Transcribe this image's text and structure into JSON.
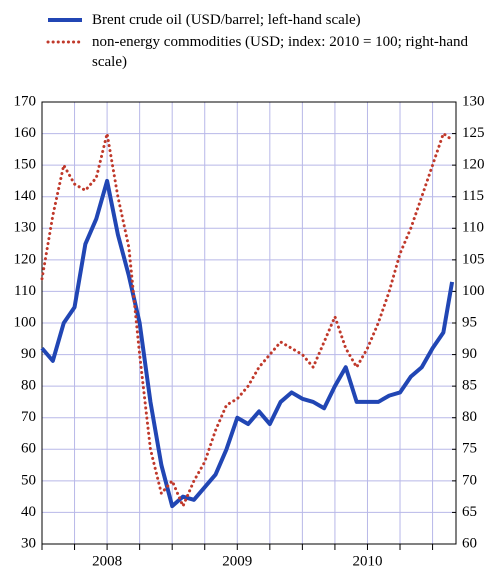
{
  "chart_data": {
    "type": "line",
    "x": [
      2008.0,
      2008.083,
      2008.167,
      2008.25,
      2008.333,
      2008.417,
      2008.5,
      2008.583,
      2008.667,
      2008.75,
      2008.833,
      2008.917,
      2009.0,
      2009.083,
      2009.167,
      2009.25,
      2009.333,
      2009.417,
      2009.5,
      2009.583,
      2009.667,
      2009.75,
      2009.833,
      2009.917,
      2010.0,
      2010.083,
      2010.167,
      2010.25,
      2010.333,
      2010.417,
      2010.5,
      2010.583,
      2010.667,
      2010.75,
      2010.833,
      2010.917,
      2011.0,
      2011.083,
      2011.15
    ],
    "series": [
      {
        "name": "Brent crude oil (USD/barrel; left-hand scale)",
        "color": "#2146b4",
        "values": [
          92,
          88,
          100,
          105,
          125,
          133,
          145,
          128,
          115,
          100,
          75,
          55,
          42,
          45,
          44,
          48,
          52,
          60,
          70,
          68,
          72,
          68,
          75,
          78,
          76,
          75,
          73,
          80,
          86,
          75,
          75,
          75,
          77,
          78,
          83,
          86,
          92,
          97,
          113
        ]
      },
      {
        "name": "non-energy commodities (USD; index: 2010 = 100; right-hand scale)",
        "color": "#c0392b",
        "axis": "y2",
        "values": [
          102,
          112,
          120,
          117,
          116,
          118,
          125,
          115,
          107,
          90,
          75,
          68,
          70,
          66,
          70,
          73,
          78,
          82,
          83,
          85,
          88,
          90,
          92,
          91,
          90,
          88,
          92,
          96,
          91,
          88,
          91,
          95,
          100,
          106,
          110,
          115,
          120,
          125,
          124
        ]
      }
    ],
    "xlim": [
      2008,
      2011.18
    ],
    "xticks": [
      {
        "value": 2008.5,
        "label": "2008"
      },
      {
        "value": 2009.5,
        "label": "2009"
      },
      {
        "value": 2010.5,
        "label": "2010"
      }
    ],
    "xminor_ticks": [
      2008,
      2008.25,
      2008.5,
      2008.75,
      2009,
      2009.25,
      2009.5,
      2009.75,
      2010,
      2010.25,
      2010.5,
      2010.75,
      2011
    ],
    "ylim": [
      30,
      170
    ],
    "yticks": [
      30,
      40,
      50,
      60,
      70,
      80,
      90,
      100,
      110,
      120,
      130,
      140,
      150,
      160,
      170
    ],
    "y2lim": [
      60,
      130
    ],
    "y2ticks": [
      60,
      65,
      70,
      75,
      80,
      85,
      90,
      95,
      100,
      105,
      110,
      115,
      120,
      125,
      130
    ],
    "grid": true
  }
}
